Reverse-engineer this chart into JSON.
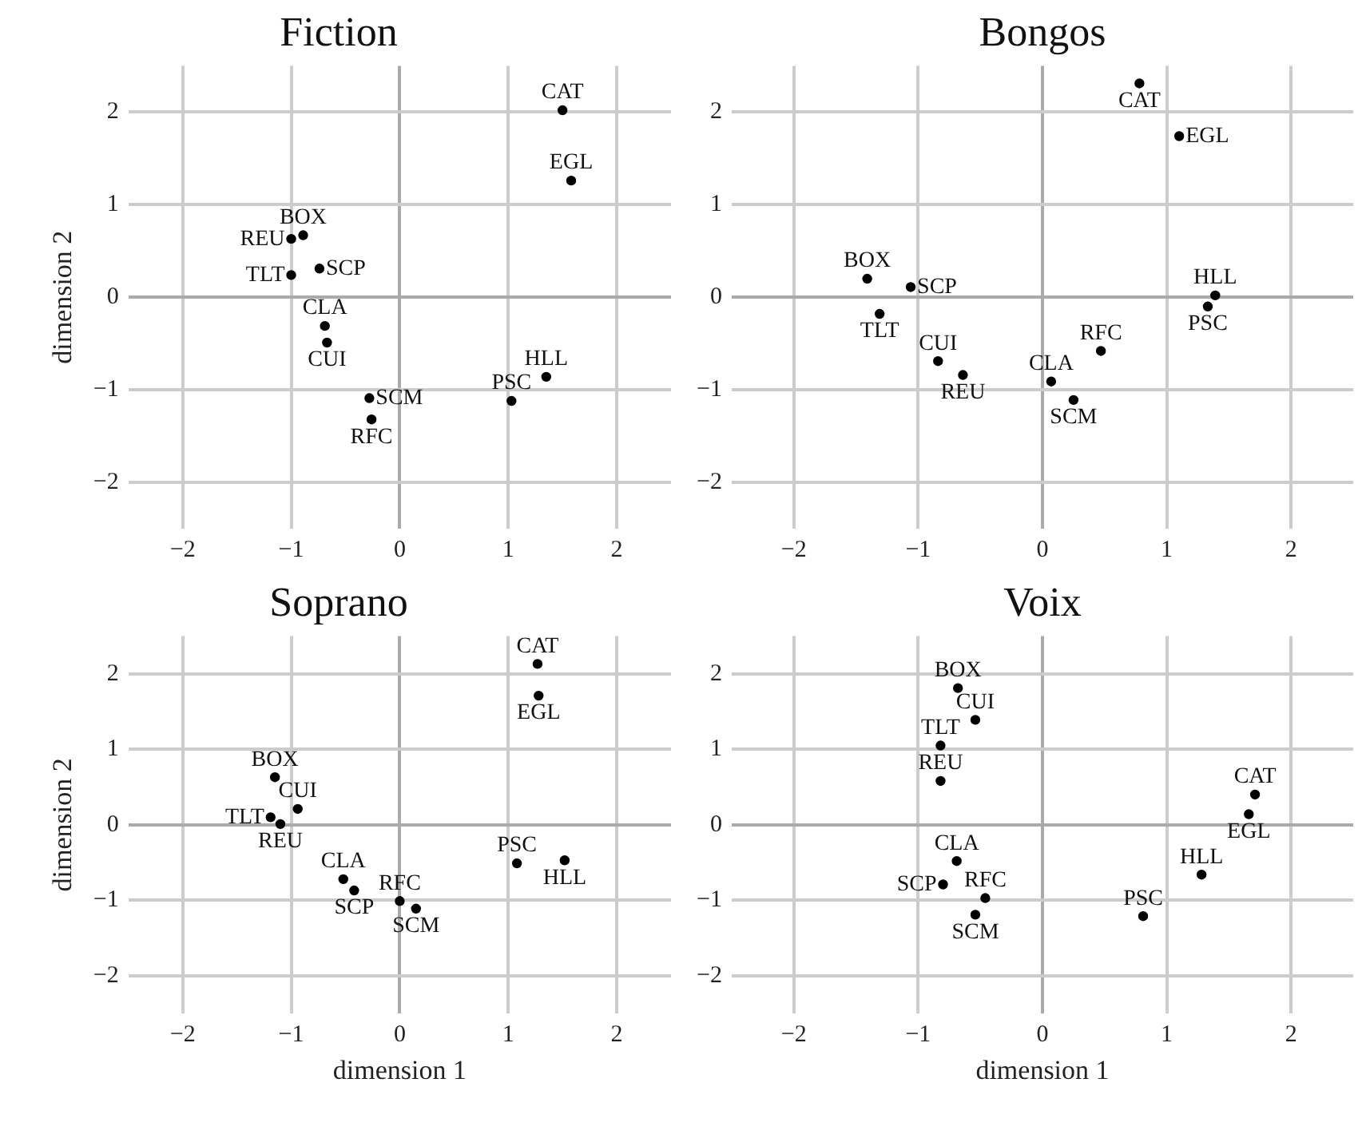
{
  "chart_data": [
    {
      "type": "scatter",
      "title": "Fiction",
      "ylabel": "dimension 2",
      "color": "#000000",
      "marker": "circle",
      "grid": true,
      "x": [
        -0.89,
        1.5,
        -0.69,
        -0.67,
        1.58,
        1.35,
        1.03,
        -1.0,
        -0.26,
        -0.28,
        -0.74,
        -1.0
      ],
      "values": [
        0.67,
        2.02,
        -0.31,
        -0.49,
        1.26,
        -0.86,
        -1.12,
        0.63,
        -1.32,
        -1.09,
        0.31,
        0.24
      ],
      "value_labels": [
        "BOX",
        "CAT",
        "CLA",
        "CUI",
        "EGL",
        "HLL",
        "PSC",
        "REU",
        "RFC",
        "SCM",
        "SCP",
        "TLT"
      ],
      "xlim": [
        -2.5,
        2.5
      ],
      "ylim": [
        -2.5,
        2.5
      ],
      "xticks": [
        -2,
        -1,
        0,
        1,
        2
      ],
      "yticks": [
        -2,
        -1,
        0,
        1,
        2
      ]
    },
    {
      "type": "scatter",
      "title": "Bongos",
      "color": "#000000",
      "marker": "circle",
      "grid": true,
      "x": [
        -1.41,
        0.78,
        0.07,
        -0.84,
        1.1,
        1.39,
        1.33,
        -0.64,
        0.47,
        0.25,
        -1.06,
        -1.31
      ],
      "values": [
        0.2,
        2.31,
        -0.91,
        -0.69,
        1.74,
        0.02,
        -0.1,
        -0.84,
        -0.58,
        -1.11,
        0.11,
        -0.18
      ],
      "value_labels": [
        "BOX",
        "CAT",
        "CLA",
        "CUI",
        "EGL",
        "HLL",
        "PSC",
        "REU",
        "RFC",
        "SCM",
        "SCP",
        "TLT"
      ],
      "xlim": [
        -2.5,
        2.5
      ],
      "ylim": [
        -2.5,
        2.5
      ],
      "xticks": [
        -2,
        -1,
        0,
        1,
        2
      ],
      "yticks": [
        -2,
        -1,
        0,
        1,
        2
      ]
    },
    {
      "type": "scatter",
      "title": "Soprano",
      "xlabel": "dimension 1",
      "ylabel": "dimension 2",
      "color": "#000000",
      "marker": "circle",
      "grid": true,
      "x": [
        -1.15,
        1.27,
        -0.52,
        -0.94,
        1.28,
        1.52,
        1.08,
        -1.1,
        0.0,
        0.15,
        -0.42,
        -1.19
      ],
      "values": [
        0.63,
        2.13,
        -0.72,
        0.21,
        1.71,
        -0.47,
        -0.51,
        0.01,
        -1.01,
        -1.11,
        -0.87,
        0.1
      ],
      "value_labels": [
        "BOX",
        "CAT",
        "CLA",
        "CUI",
        "EGL",
        "HLL",
        "PSC",
        "REU",
        "RFC",
        "SCM",
        "SCP",
        "TLT"
      ],
      "xlim": [
        -2.5,
        2.5
      ],
      "ylim": [
        -2.5,
        2.5
      ],
      "xticks": [
        -2,
        -1,
        0,
        1,
        2
      ],
      "yticks": [
        -2,
        -1,
        0,
        1,
        2
      ]
    },
    {
      "type": "scatter",
      "title": "Voix",
      "xlabel": "dimension 1",
      "color": "#000000",
      "marker": "circle",
      "grid": true,
      "x": [
        -0.68,
        1.71,
        -0.69,
        -0.54,
        1.66,
        1.28,
        0.81,
        -0.82,
        -0.46,
        -0.54,
        -0.8,
        -0.82
      ],
      "values": [
        1.81,
        0.4,
        -0.48,
        1.39,
        0.14,
        -0.66,
        -1.21,
        0.58,
        -0.97,
        -1.19,
        -0.79,
        1.05
      ],
      "value_labels": [
        "BOX",
        "CAT",
        "CLA",
        "CUI",
        "EGL",
        "HLL",
        "PSC",
        "REU",
        "RFC",
        "SCM",
        "SCP",
        "TLT"
      ],
      "xlim": [
        -2.5,
        2.5
      ],
      "ylim": [
        -2.5,
        2.5
      ],
      "xticks": [
        -2,
        -1,
        0,
        1,
        2
      ],
      "yticks": [
        -2,
        -1,
        0,
        1,
        2
      ]
    }
  ]
}
